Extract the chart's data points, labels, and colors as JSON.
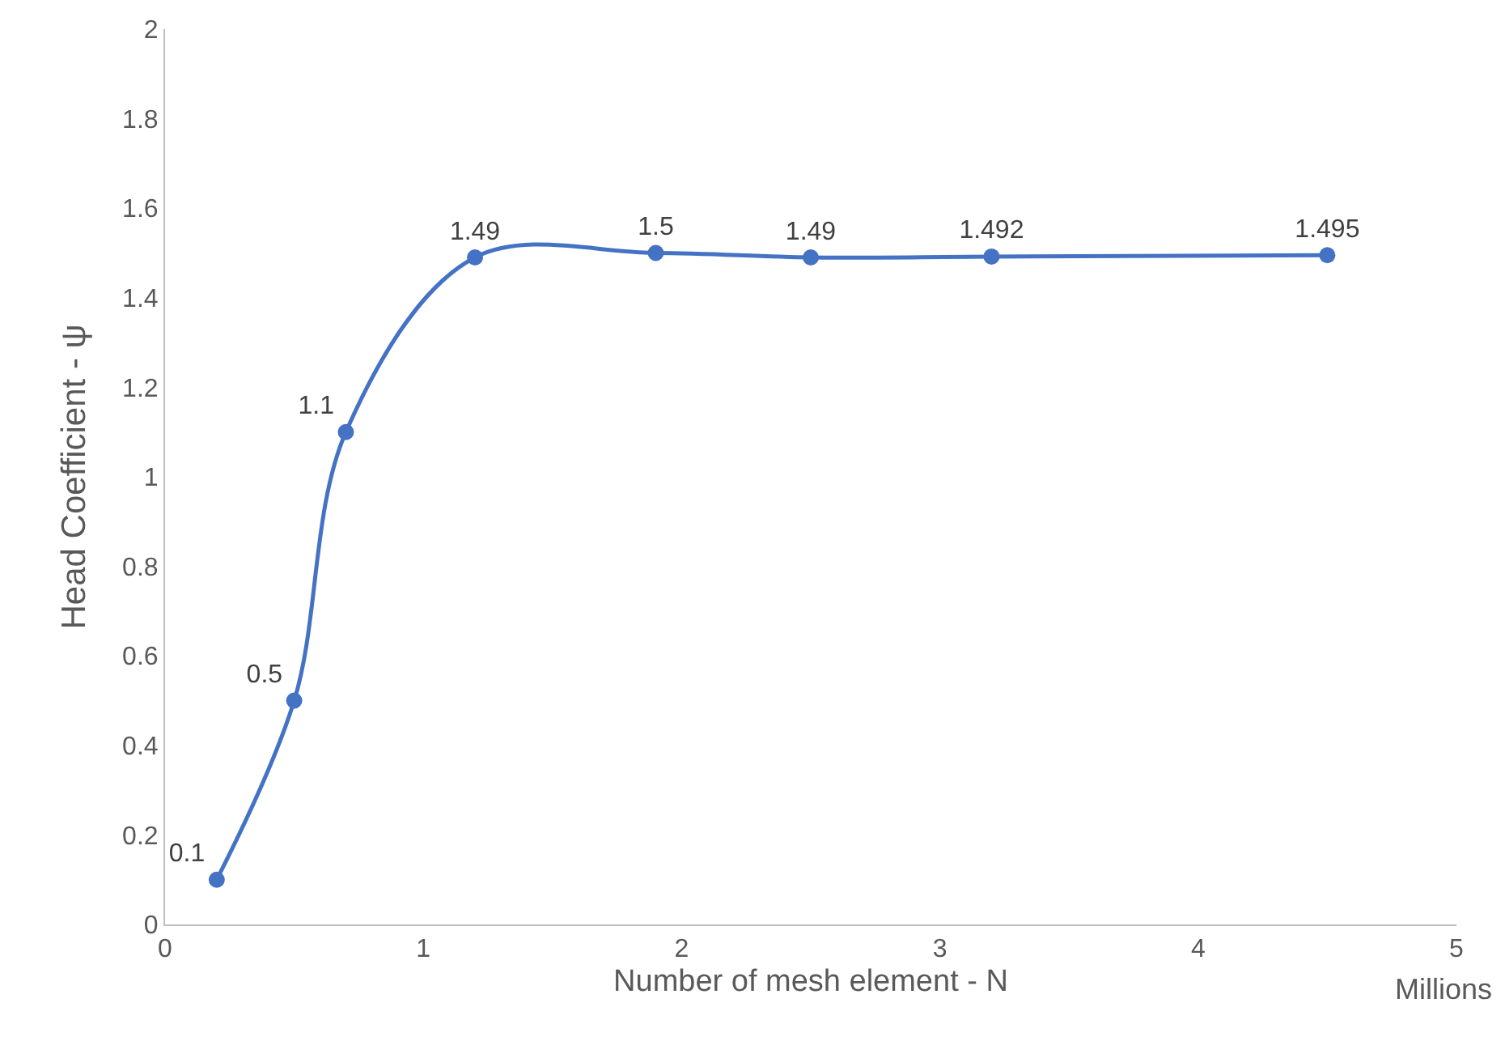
{
  "chart_data": {
    "type": "line",
    "xlabel": "Number of mesh element - N",
    "ylabel": "Head Coefficient - ψ",
    "x": [
      0.2,
      0.5,
      0.7,
      1.2,
      1.9,
      2.5,
      3.2,
      4.5
    ],
    "series": [
      {
        "color": "#4472c4",
        "values": [
          0.1,
          0.5,
          1.1,
          1.49,
          1.5,
          1.49,
          1.492,
          1.495
        ]
      }
    ],
    "xlim": [
      0,
      5
    ],
    "xticks": [
      0,
      1,
      2,
      3,
      4,
      5
    ],
    "ylim": [
      0,
      2
    ],
    "yticks": [
      0,
      0.2,
      0.4,
      0.6,
      0.8,
      1,
      1.2,
      1.4,
      1.6,
      1.8,
      2
    ],
    "grid": false,
    "marker": "circle",
    "line_style": "solid",
    "data_labels": true,
    "annotations": [
      "Millions"
    ]
  }
}
